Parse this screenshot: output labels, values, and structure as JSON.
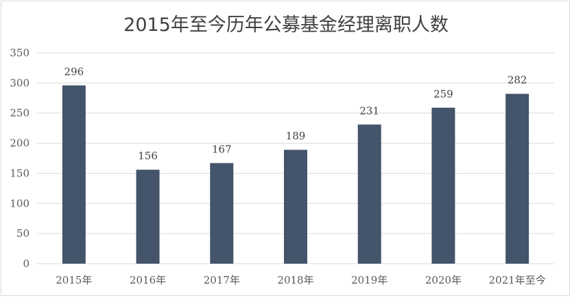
{
  "chart_data": {
    "type": "bar",
    "title": "2015年至今历年公募基金经理离职人数",
    "categories": [
      "2015年",
      "2016年",
      "2017年",
      "2018年",
      "2019年",
      "2020年",
      "2021年至今"
    ],
    "values": [
      296,
      156,
      167,
      189,
      231,
      259,
      282
    ],
    "ylim": [
      0,
      350
    ],
    "yticks": [
      0,
      50,
      100,
      150,
      200,
      250,
      300,
      350
    ],
    "grid": true,
    "bar_color": "#44546a",
    "grid_color": "#d9d9d9"
  }
}
